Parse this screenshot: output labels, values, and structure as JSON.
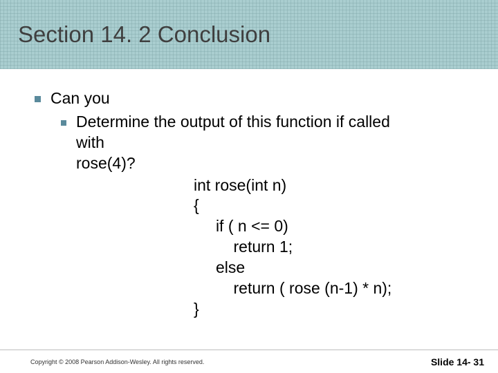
{
  "colors": {
    "header_bg": "#a9cdcf",
    "header_grid": "rgba(120,160,162,0.35)",
    "title_color": "#3f3f3f",
    "bullet_color": "#5a8a9c",
    "body_text": "#000000",
    "footer_border": "#bdbdbd",
    "background": "#ffffff"
  },
  "typography": {
    "title_fontsize": 33,
    "body_fontsize": 23,
    "copyright_fontsize": 9,
    "slidenum_fontsize": 14,
    "font_family": "Arial"
  },
  "title": "Section 14. 2 Conclusion",
  "level1": "Can you",
  "level2_line1": "Determine the output of this function if called",
  "level2_line2": "with",
  "level2_line3": "rose(4)?",
  "code": {
    "l1": "int rose(int n)",
    "l2": "{",
    "l3": "     if ( n <= 0)",
    "l4": "         return 1;",
    "l5": "     else",
    "l6": "         return ( rose (n-1) * n);",
    "l7": "}"
  },
  "copyright": "Copyright © 2008 Pearson Addison-Wesley. All rights reserved.",
  "slidenum": "Slide 14- 31"
}
